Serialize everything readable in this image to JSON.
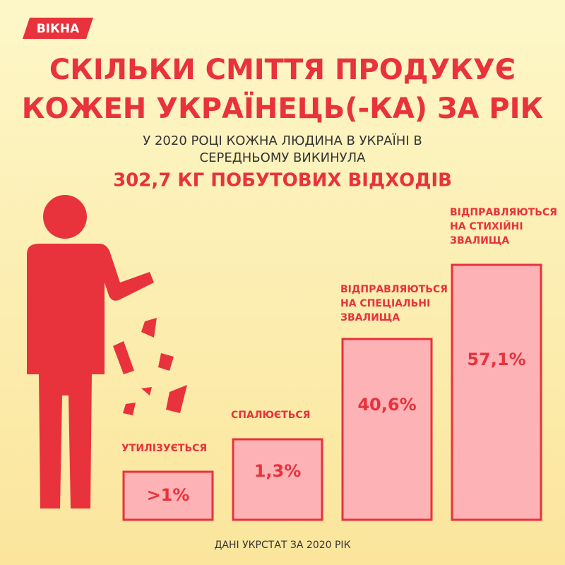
{
  "brand": "ВІКНА",
  "title": [
    "СКІЛЬКИ СМІТТЯ ПРОДУКУЄ",
    "КОЖЕН УКРАЇНЕЦЬ(-КА) ЗА РІК"
  ],
  "subtitle": [
    "У 2020 РОЦІ КОЖНА ЛЮДИНА В УКРАЇНІ В",
    "СЕРЕДНЬОМУ ВИКИНУЛА"
  ],
  "highlight": "302,7 КГ ПОБУТОВИХ ВІДХОДІВ",
  "items": [
    {
      "label": [
        "УТИЛІЗУЄТЬСЯ"
      ],
      "value": ">1%"
    },
    {
      "label": [
        "СПАЛЮЄТЬСЯ"
      ],
      "value": "1,3%"
    },
    {
      "label": [
        "ВІДПРАВЛЯЮТЬСЯ",
        "НА СПЕЦІАЛЬНІ",
        "ЗВАЛИЩА"
      ],
      "value": "40,6%"
    },
    {
      "label": [
        "ВІДПРАВЛЯЮТЬСЯ",
        "НА СТИХІЙНІ",
        "ЗВАЛИЩА"
      ],
      "value": "57,1%"
    }
  ],
  "source": "ДАНІ УКРСТАТ ЗА 2020 РІК"
}
